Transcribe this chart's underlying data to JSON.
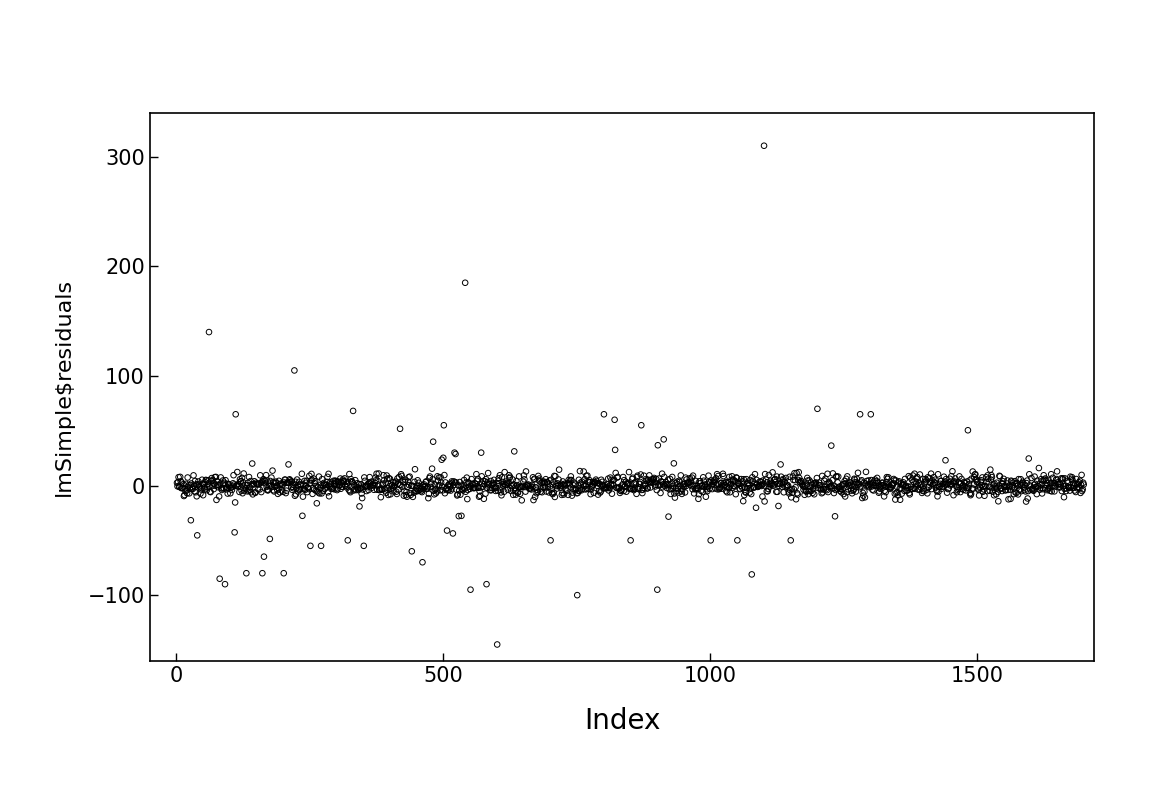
{
  "title": "",
  "xlabel": "Index",
  "ylabel": "lmSimple$residuals",
  "xlim": [
    -50,
    1720
  ],
  "ylim": [
    -160,
    340
  ],
  "yticks": [
    -100,
    0,
    100,
    200,
    300
  ],
  "xticks": [
    0,
    500,
    1000,
    1500
  ],
  "n_points": 1700,
  "seed": 42,
  "background_color": "#ffffff",
  "marker_color": "black",
  "core_std": 5,
  "outlier_rate": 0.025,
  "outlier_std": 30,
  "marker_size": 4,
  "marker_linewidth": 0.7,
  "specific_outliers_pos": [
    [
      60,
      140
    ],
    [
      110,
      65
    ],
    [
      220,
      105
    ],
    [
      540,
      185
    ],
    [
      1100,
      310
    ],
    [
      1200,
      70
    ],
    [
      1280,
      65
    ],
    [
      1300,
      65
    ],
    [
      800,
      65
    ],
    [
      820,
      60
    ],
    [
      870,
      55
    ],
    [
      480,
      40
    ],
    [
      500,
      55
    ],
    [
      520,
      30
    ],
    [
      570,
      30
    ]
  ],
  "specific_outliers_neg": [
    [
      80,
      -85
    ],
    [
      90,
      -90
    ],
    [
      130,
      -80
    ],
    [
      160,
      -80
    ],
    [
      200,
      -80
    ],
    [
      250,
      -55
    ],
    [
      270,
      -55
    ],
    [
      320,
      -50
    ],
    [
      350,
      -55
    ],
    [
      440,
      -60
    ],
    [
      460,
      -70
    ],
    [
      550,
      -95
    ],
    [
      580,
      -90
    ],
    [
      600,
      -145
    ],
    [
      700,
      -50
    ],
    [
      750,
      -100
    ],
    [
      850,
      -50
    ],
    [
      900,
      -95
    ],
    [
      1000,
      -50
    ],
    [
      1050,
      -50
    ],
    [
      1150,
      -50
    ]
  ]
}
